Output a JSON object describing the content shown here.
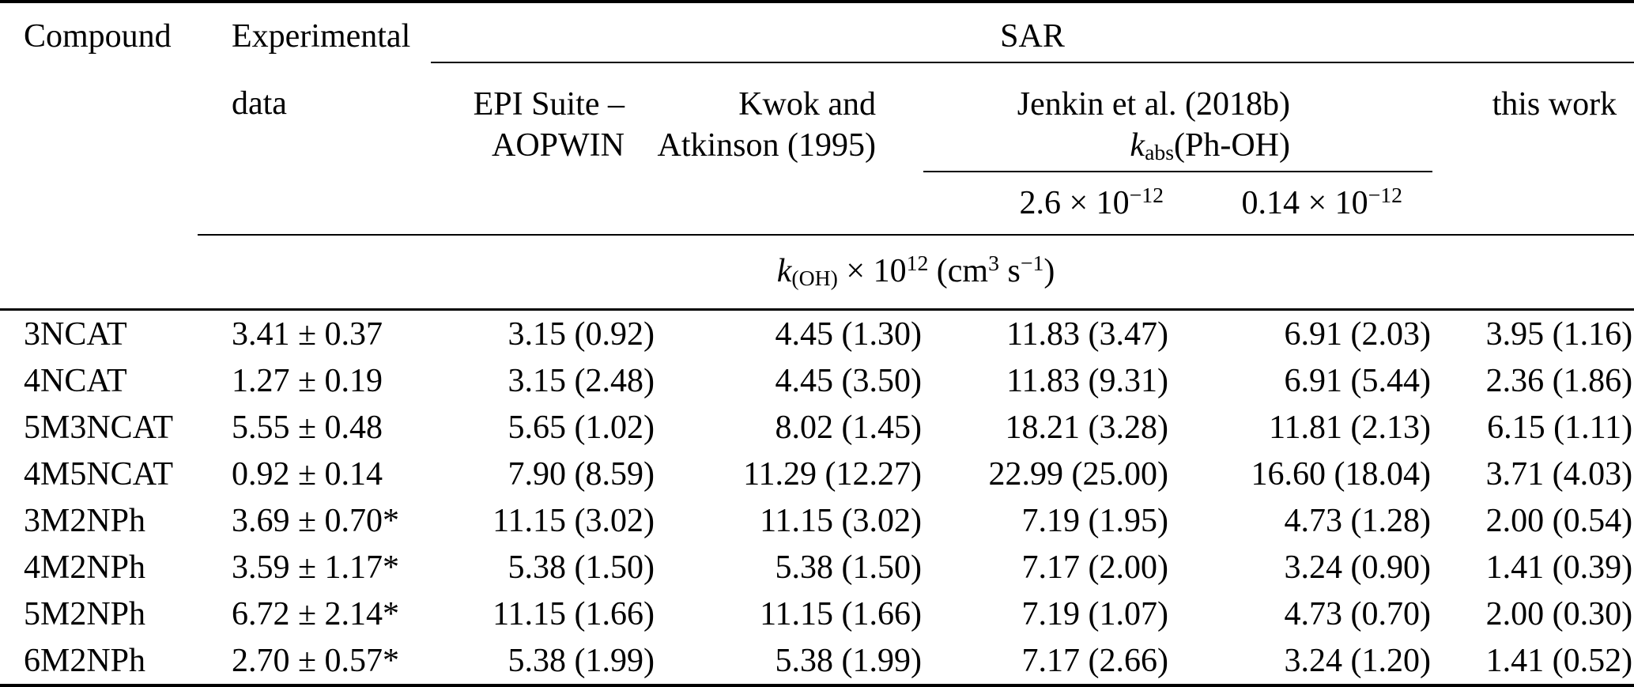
{
  "table": {
    "headers": {
      "compound": "Compound",
      "experimental_line1": "Experimental",
      "experimental_line2": "data",
      "sar_group": "SAR",
      "epi_line1": "EPI Suite –",
      "epi_line2": "AOPWIN",
      "kwok_line1": "Kwok and",
      "kwok_line2": "Atkinson (1995)",
      "jenkin_line1": "Jenkin et al. (2018b)",
      "jenkin_line2": "/{k}_{abs}(Ph-OH)",
      "jenkin_sub_col1": "2.6 × 10^{−12}",
      "jenkin_sub_col2": "0.14 × 10^{−12}",
      "this_work": "this work",
      "units": "/{k}_{(OH)} × 10^{12} (cm^{3} s^{−1})"
    },
    "rows": [
      {
        "compound": "3NCAT",
        "experimental": "3.41 ± 0.37",
        "epi": "3.15 (0.92)",
        "kwok": "4.45 (1.30)",
        "jenkin_2_6": "11.83 (3.47)",
        "jenkin_0_14": "6.91 (2.03)",
        "this_work": "3.95 (1.16)"
      },
      {
        "compound": "4NCAT",
        "experimental": "1.27 ± 0.19",
        "epi": "3.15 (2.48)",
        "kwok": "4.45 (3.50)",
        "jenkin_2_6": "11.83 (9.31)",
        "jenkin_0_14": "6.91 (5.44)",
        "this_work": "2.36 (1.86)"
      },
      {
        "compound": "5M3NCAT",
        "experimental": "5.55 ± 0.48",
        "epi": "5.65 (1.02)",
        "kwok": "8.02 (1.45)",
        "jenkin_2_6": "18.21 (3.28)",
        "jenkin_0_14": "11.81 (2.13)",
        "this_work": "6.15 (1.11)"
      },
      {
        "compound": "4M5NCAT",
        "experimental": "0.92 ± 0.14",
        "epi": "7.90 (8.59)",
        "kwok": "11.29 (12.27)",
        "jenkin_2_6": "22.99 (25.00)",
        "jenkin_0_14": "16.60 (18.04)",
        "this_work": "3.71 (4.03)"
      },
      {
        "compound": "3M2NPh",
        "experimental": "3.69 ± 0.70*",
        "epi": "11.15 (3.02)",
        "kwok": "11.15 (3.02)",
        "jenkin_2_6": "7.19 (1.95)",
        "jenkin_0_14": "4.73 (1.28)",
        "this_work": "2.00 (0.54)"
      },
      {
        "compound": "4M2NPh",
        "experimental": "3.59 ± 1.17*",
        "epi": "5.38 (1.50)",
        "kwok": "5.38 (1.50)",
        "jenkin_2_6": "7.17 (2.00)",
        "jenkin_0_14": "3.24 (0.90)",
        "this_work": "1.41 (0.39)"
      },
      {
        "compound": "5M2NPh",
        "experimental": "6.72 ± 2.14*",
        "epi": "11.15 (1.66)",
        "kwok": "11.15 (1.66)",
        "jenkin_2_6": "7.19 (1.07)",
        "jenkin_0_14": "4.73 (0.70)",
        "this_work": "2.00 (0.30)"
      },
      {
        "compound": "6M2NPh",
        "experimental": "2.70 ± 0.57*",
        "epi": "5.38 (1.99)",
        "kwok": "5.38 (1.99)",
        "jenkin_2_6": "7.17 (2.66)",
        "jenkin_0_14": "3.24 (1.20)",
        "this_work": "1.41 (0.52)"
      }
    ]
  }
}
